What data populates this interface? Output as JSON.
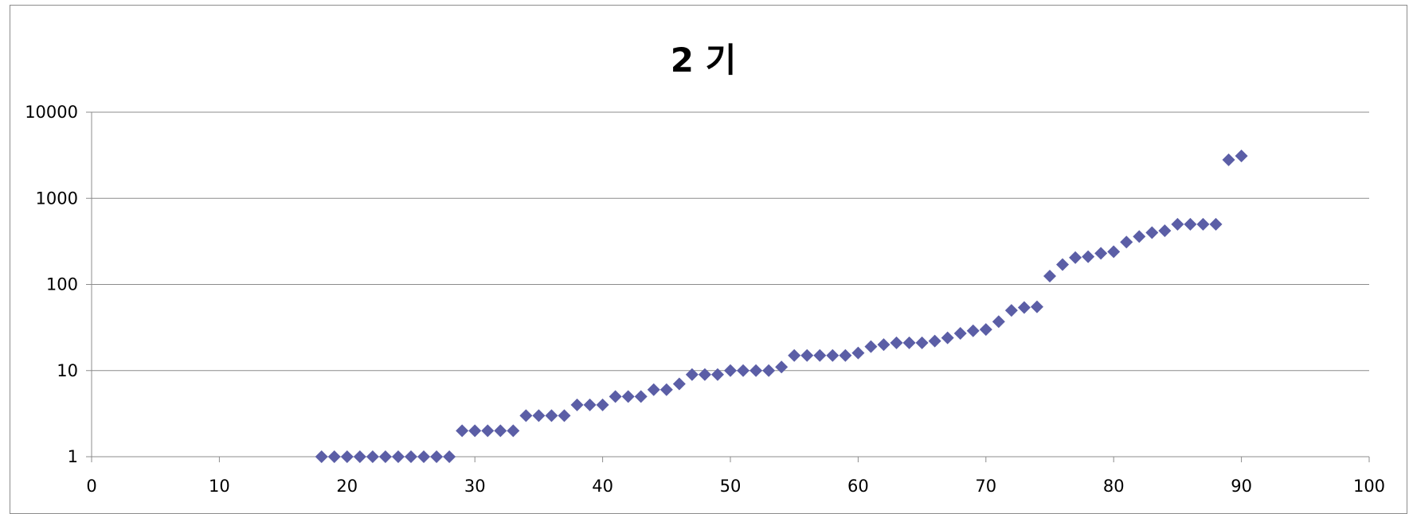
{
  "chart_data": {
    "type": "scatter",
    "title": "2 기",
    "xlabel": "",
    "ylabel": "",
    "xlim": [
      0,
      100
    ],
    "ylim": [
      1,
      10000
    ],
    "y_scale": "log",
    "x_ticks": [
      "0",
      "10",
      "20",
      "30",
      "40",
      "50",
      "60",
      "70",
      "80",
      "90",
      "100"
    ],
    "y_ticks": [
      "1",
      "10",
      "100",
      "1000",
      "10000"
    ],
    "grid": "horizontal",
    "legend": "none",
    "marker": "diamond",
    "marker_color": "#5B5EA6",
    "series": [
      {
        "x": [
          18,
          19,
          20,
          21,
          22,
          23,
          24,
          25,
          26,
          27,
          28,
          29,
          30,
          31,
          32,
          33,
          34,
          35,
          36,
          37,
          38,
          39,
          40,
          41,
          42,
          43,
          44,
          45,
          46,
          47,
          48,
          49,
          50,
          51,
          52,
          53,
          54,
          55,
          56,
          57,
          58,
          59,
          60,
          61,
          62,
          63,
          64,
          65,
          66,
          67,
          68,
          69,
          70,
          71,
          72,
          73,
          74,
          75,
          76,
          77,
          78,
          79,
          80,
          81,
          82,
          83,
          84,
          85,
          86,
          87,
          88,
          89,
          90
        ],
        "y": [
          1,
          1,
          1,
          1,
          1,
          1,
          1,
          1,
          1,
          1,
          1,
          2,
          2,
          2,
          2,
          2,
          3,
          3,
          3,
          3,
          4,
          4,
          4,
          5,
          5,
          5,
          6,
          6,
          7,
          9,
          9,
          9,
          10,
          10,
          10,
          10,
          11,
          15,
          15,
          15,
          15,
          15,
          16,
          19,
          20,
          21,
          21,
          21,
          22,
          24,
          27,
          29,
          30,
          37,
          50,
          54,
          55,
          125,
          170,
          205,
          210,
          230,
          240,
          310,
          360,
          400,
          420,
          500,
          500,
          500,
          500,
          2800,
          3100
        ]
      }
    ]
  }
}
